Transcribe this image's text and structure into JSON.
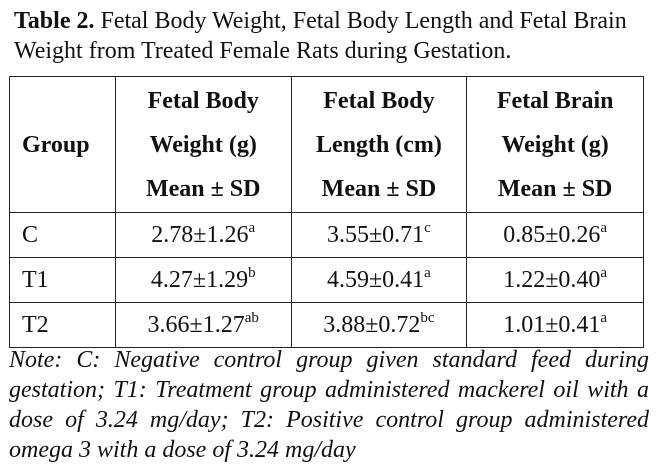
{
  "caption": {
    "label": "Table 2.",
    "text": "Fetal Body Weight, Fetal Body Length and Fetal Brain Weight from Treated Female Rats during Gestation."
  },
  "table": {
    "headers": [
      {
        "lines": [
          "Group"
        ]
      },
      {
        "lines": [
          "Fetal Body",
          "Weight (g)",
          "Mean ± SD"
        ]
      },
      {
        "lines": [
          "Fetal Body",
          "Length (cm)",
          "Mean ± SD"
        ]
      },
      {
        "lines": [
          "Fetal Brain",
          "Weight (g)",
          "Mean ± SD"
        ]
      }
    ],
    "rows": [
      {
        "group": "C",
        "cells": [
          {
            "value": "2.78±1.26",
            "sup": "a"
          },
          {
            "value": "3.55±0.71",
            "sup": "c"
          },
          {
            "value": "0.85±0.26",
            "sup": "a"
          }
        ]
      },
      {
        "group": "T1",
        "cells": [
          {
            "value": "4.27±1.29",
            "sup": "b"
          },
          {
            "value": "4.59±0.41",
            "sup": "a"
          },
          {
            "value": "1.22±0.40",
            "sup": "a"
          }
        ]
      },
      {
        "group": "T2",
        "cells": [
          {
            "value": "3.66±1.27",
            "sup": "ab"
          },
          {
            "value": "3.88±0.72",
            "sup": "bc"
          },
          {
            "value": "1.01±0.41",
            "sup": "a"
          }
        ]
      }
    ]
  },
  "note": "Note: C: Negative control group given standard feed during gestation; T1: Treatment group administered mackerel oil with a dose of 3.24 mg/day; T2: Positive control group administered omega 3 with a dose of 3.24 mg/day"
}
